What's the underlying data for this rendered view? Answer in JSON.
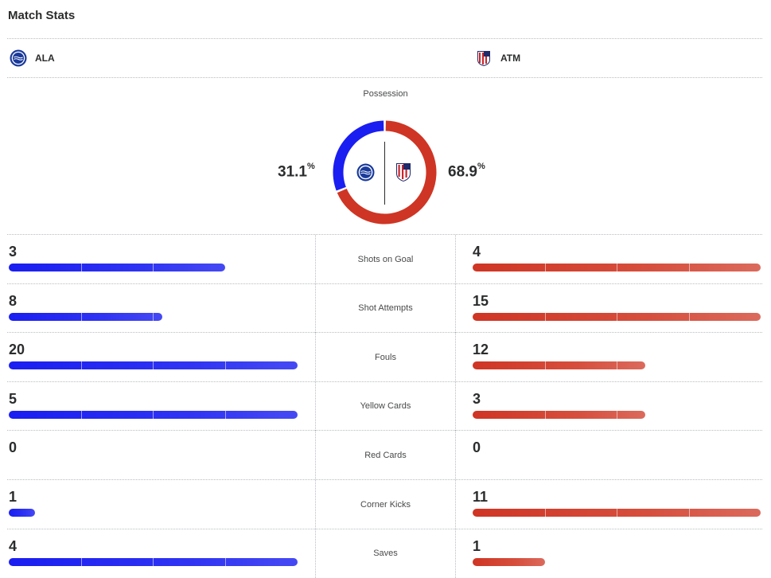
{
  "page": {
    "title": "Match Stats"
  },
  "teams": {
    "home": {
      "abbr": "ALA",
      "color": "#1a1ef0"
    },
    "away": {
      "abbr": "ATM",
      "color": "#cf3524"
    }
  },
  "possession": {
    "label": "Possession",
    "home_value": "31.1",
    "away_value": "68.9",
    "unit": "%",
    "home_fraction": 0.311,
    "away_fraction": 0.689
  },
  "stats": [
    {
      "label": "Shots on Goal",
      "home": "3",
      "away": "4",
      "home_fraction": 0.75,
      "away_fraction": 1.0
    },
    {
      "label": "Shot Attempts",
      "home": "8",
      "away": "15",
      "home_fraction": 0.533,
      "away_fraction": 1.0
    },
    {
      "label": "Fouls",
      "home": "20",
      "away": "12",
      "home_fraction": 1.0,
      "away_fraction": 0.6
    },
    {
      "label": "Yellow Cards",
      "home": "5",
      "away": "3",
      "home_fraction": 1.0,
      "away_fraction": 0.6
    },
    {
      "label": "Red Cards",
      "home": "0",
      "away": "0",
      "home_fraction": 0,
      "away_fraction": 0
    },
    {
      "label": "Corner Kicks",
      "home": "1",
      "away": "11",
      "home_fraction": 0.091,
      "away_fraction": 1.0
    },
    {
      "label": "Saves",
      "home": "4",
      "away": "1",
      "home_fraction": 1.0,
      "away_fraction": 0.25
    }
  ]
}
